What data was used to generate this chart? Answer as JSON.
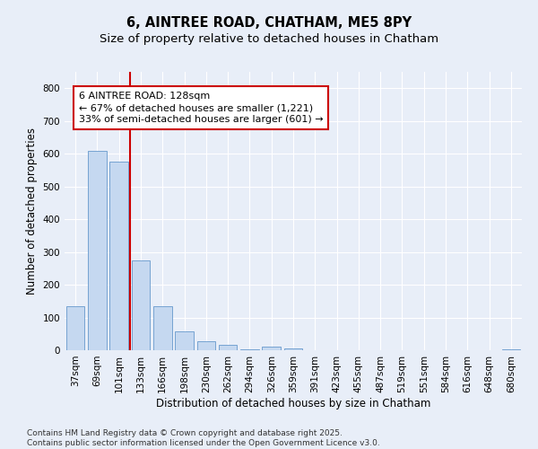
{
  "title1": "6, AINTREE ROAD, CHATHAM, ME5 8PY",
  "title2": "Size of property relative to detached houses in Chatham",
  "xlabel": "Distribution of detached houses by size in Chatham",
  "ylabel": "Number of detached properties",
  "categories": [
    "37sqm",
    "69sqm",
    "101sqm",
    "133sqm",
    "166sqm",
    "198sqm",
    "230sqm",
    "262sqm",
    "294sqm",
    "326sqm",
    "359sqm",
    "391sqm",
    "423sqm",
    "455sqm",
    "487sqm",
    "519sqm",
    "551sqm",
    "584sqm",
    "616sqm",
    "648sqm",
    "680sqm"
  ],
  "values": [
    135,
    608,
    576,
    275,
    133,
    58,
    28,
    17,
    4,
    10,
    5,
    0,
    0,
    0,
    0,
    0,
    0,
    0,
    0,
    0,
    4
  ],
  "bar_color": "#c5d8f0",
  "bar_edge_color": "#6699cc",
  "vline_x": 2.5,
  "vline_color": "#cc0000",
  "annotation_text": "6 AINTREE ROAD: 128sqm\n← 67% of detached houses are smaller (1,221)\n33% of semi-detached houses are larger (601) →",
  "annotation_box_color": "#cc0000",
  "background_color": "#e8eef8",
  "ylim": [
    0,
    850
  ],
  "yticks": [
    0,
    100,
    200,
    300,
    400,
    500,
    600,
    700,
    800
  ],
  "grid_color": "#ffffff",
  "footer": "Contains HM Land Registry data © Crown copyright and database right 2025.\nContains public sector information licensed under the Open Government Licence v3.0.",
  "title_fontsize": 10.5,
  "subtitle_fontsize": 9.5,
  "axis_label_fontsize": 8.5,
  "tick_fontsize": 7.5,
  "footer_fontsize": 6.5,
  "ann_fontsize": 8.0
}
